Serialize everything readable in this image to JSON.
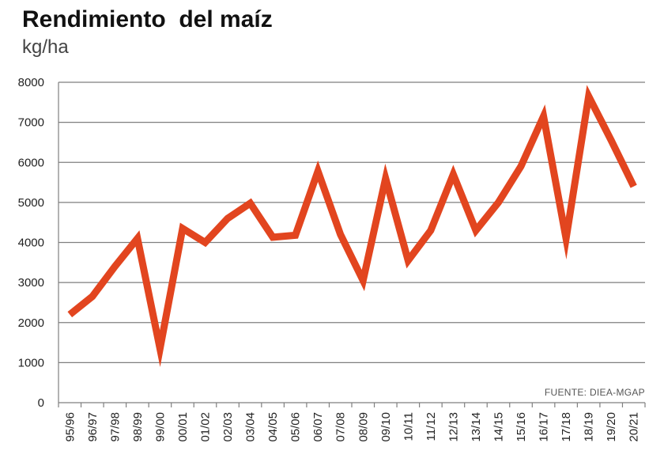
{
  "chart_data": {
    "type": "line",
    "title": "Rendimiento  del maíz",
    "subtitle": "kg/ha",
    "xlabel": "",
    "ylabel": "",
    "ylim": [
      0,
      8000
    ],
    "yticks": [
      "0",
      "1000",
      "2000",
      "3000",
      "4000",
      "5000",
      "6000",
      "7000",
      "8000"
    ],
    "categories": [
      "95/96",
      "96/97",
      "97/98",
      "98/99",
      "99/00",
      "00/01",
      "01/02",
      "02/03",
      "03/04",
      "04/05",
      "05/06",
      "06/07",
      "07/08",
      "08/09",
      "09/10",
      "10/11",
      "11/12",
      "12/13",
      "13/14",
      "14/15",
      "15/16",
      "16/17",
      "17/18",
      "18/19",
      "19/20",
      "20/21"
    ],
    "series": [
      {
        "values": [
          2200,
          2650,
          3400,
          4100,
          1350,
          4350,
          4000,
          4600,
          4980,
          4130,
          4180,
          5780,
          4200,
          3050,
          5600,
          3550,
          4300,
          5700,
          4300,
          5000,
          5900,
          7150,
          4100,
          7650,
          6550,
          5400
        ]
      }
    ],
    "line_color": "#e2451f",
    "grid": true,
    "source": "FUENTE: DIEA-MGAP"
  }
}
